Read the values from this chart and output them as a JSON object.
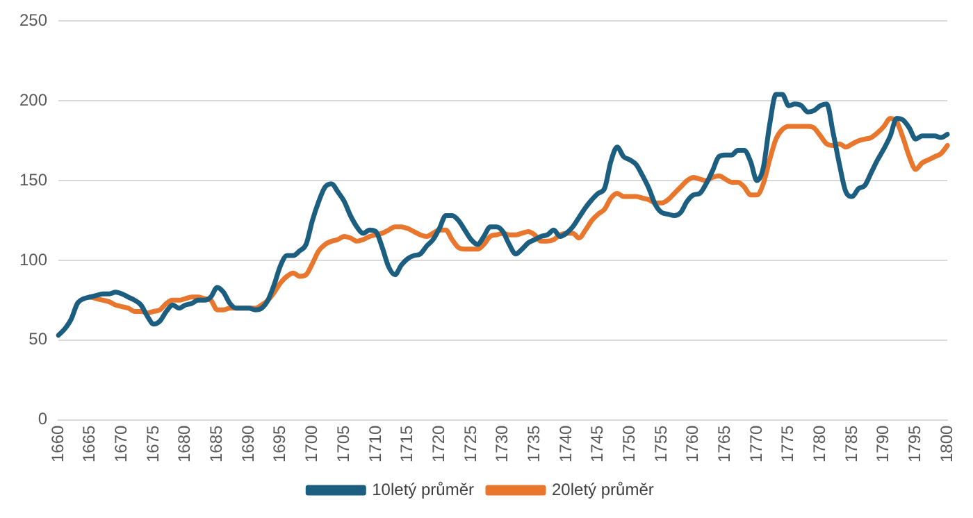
{
  "chart_data": {
    "type": "line",
    "categories": [
      "1660",
      null,
      null,
      null,
      null,
      "1665",
      null,
      null,
      null,
      null,
      "1670",
      null,
      null,
      null,
      null,
      "1675",
      null,
      null,
      null,
      null,
      "1680",
      null,
      null,
      null,
      null,
      "1685",
      null,
      null,
      null,
      null,
      "1690",
      null,
      null,
      null,
      null,
      "1695",
      null,
      null,
      null,
      null,
      "1700",
      null,
      null,
      null,
      null,
      "1705",
      null,
      null,
      null,
      null,
      "1710",
      null,
      null,
      null,
      null,
      "1715",
      null,
      null,
      null,
      null,
      "1720",
      null,
      null,
      null,
      null,
      "1725",
      null,
      null,
      null,
      null,
      "1730",
      null,
      null,
      null,
      null,
      "1735",
      null,
      null,
      null,
      null,
      "1740",
      null,
      null,
      null,
      null,
      "1745",
      null,
      null,
      null,
      null,
      "1750",
      null,
      null,
      null,
      null,
      "1755",
      null,
      null,
      null,
      null,
      "1760",
      null,
      null,
      null,
      null,
      "1765",
      null,
      null,
      null,
      null,
      "1770",
      null,
      null,
      null,
      null,
      "1775",
      null,
      null,
      null,
      null,
      "1780",
      null,
      null,
      null,
      null,
      "1785",
      null,
      null,
      null,
      null,
      "1790",
      null,
      null,
      null,
      null,
      "1795",
      null,
      null,
      null,
      null,
      "1800"
    ],
    "series": [
      {
        "name": "10letý průměr",
        "color": "#1b5e80",
        "values": [
          53,
          57,
          63,
          73,
          76,
          77,
          78,
          79,
          79,
          80,
          79,
          77,
          75,
          72,
          65,
          60,
          62,
          68,
          72,
          70,
          72,
          73,
          75,
          75,
          77,
          83,
          80,
          73,
          70,
          70,
          70,
          69,
          70,
          75,
          85,
          97,
          103,
          103,
          106,
          110,
          125,
          137,
          146,
          148,
          143,
          137,
          128,
          121,
          117,
          119,
          118,
          108,
          96,
          91,
          97,
          101,
          103,
          104,
          109,
          113,
          120,
          128,
          128,
          125,
          119,
          113,
          110,
          115,
          121,
          121,
          118,
          110,
          104,
          107,
          111,
          113,
          115,
          116,
          119,
          115,
          117,
          121,
          127,
          133,
          138,
          142,
          145,
          162,
          171,
          165,
          163,
          160,
          153,
          145,
          135,
          130,
          129,
          128,
          130,
          137,
          141,
          142,
          148,
          156,
          165,
          166,
          166,
          169,
          169,
          162,
          150,
          158,
          185,
          204,
          204,
          197,
          198,
          197,
          193,
          194,
          197,
          198,
          180,
          160,
          143,
          140,
          145,
          147,
          155,
          163,
          170,
          178,
          189,
          188,
          183,
          176,
          178,
          178,
          178,
          177,
          179
        ]
      },
      {
        "name": "20letý průměr",
        "color": "#e8762c",
        "values": [
          null,
          null,
          null,
          null,
          null,
          77,
          76,
          75,
          74,
          72,
          71,
          70,
          68,
          68,
          67,
          68,
          69,
          73,
          75,
          75,
          76,
          77,
          77,
          76,
          75,
          69,
          69,
          70,
          70,
          70,
          70,
          70,
          72,
          75,
          80,
          86,
          90,
          92,
          90,
          91,
          98,
          106,
          110,
          112,
          113,
          115,
          114,
          112,
          113,
          115,
          116,
          117,
          119,
          121,
          121,
          120,
          118,
          116,
          115,
          117,
          119,
          119,
          113,
          108,
          107,
          107,
          107,
          110,
          115,
          116,
          117,
          116,
          116,
          117,
          118,
          116,
          112,
          112,
          113,
          116,
          117,
          117,
          114,
          119,
          125,
          129,
          132,
          139,
          142,
          140,
          140,
          140,
          139,
          138,
          136,
          136,
          138,
          142,
          146,
          150,
          152,
          151,
          150,
          152,
          153,
          151,
          149,
          149,
          146,
          141,
          141,
          148,
          163,
          176,
          182,
          184,
          184,
          184,
          184,
          183,
          178,
          173,
          172,
          173,
          171,
          173,
          175,
          176,
          177,
          180,
          184,
          189,
          187,
          177,
          165,
          157,
          161,
          163,
          165,
          167,
          172
        ]
      }
    ],
    "ylim": [
      0,
      250
    ],
    "yticks": [
      0,
      50,
      100,
      150,
      200,
      250
    ],
    "grid": "y",
    "legend": "bottom",
    "marker": "none",
    "line_style": "solid"
  }
}
